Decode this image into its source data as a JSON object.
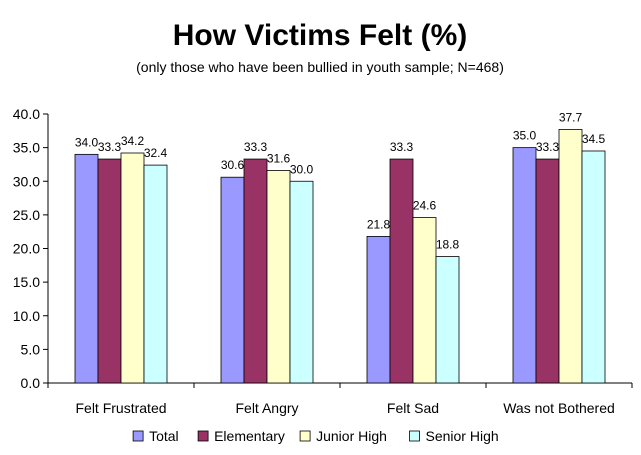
{
  "chart_data": {
    "type": "bar",
    "title": "How Victims Felt (%)",
    "subtitle": "(only those who have been bullied in youth sample; N=468)",
    "xlabel": "",
    "ylabel": "",
    "ylim": [
      0,
      40
    ],
    "ytick_step": 5,
    "ytick_format": "0.0",
    "grid": false,
    "legend_position": "bottom",
    "categories": [
      "Felt Frustrated",
      "Felt Angry",
      "Felt Sad",
      "Was not Bothered"
    ],
    "series": [
      {
        "name": "Total",
        "color": "#9999ff",
        "values": [
          34.0,
          30.6,
          21.8,
          35.0
        ]
      },
      {
        "name": "Elementary",
        "color": "#993366",
        "values": [
          33.3,
          33.3,
          33.3,
          33.3
        ]
      },
      {
        "name": "Junior High",
        "color": "#ffffcc",
        "values": [
          34.2,
          31.6,
          24.6,
          37.7
        ]
      },
      {
        "name": "Senior High",
        "color": "#ccffff",
        "values": [
          32.4,
          30.0,
          18.8,
          34.5
        ]
      }
    ]
  }
}
